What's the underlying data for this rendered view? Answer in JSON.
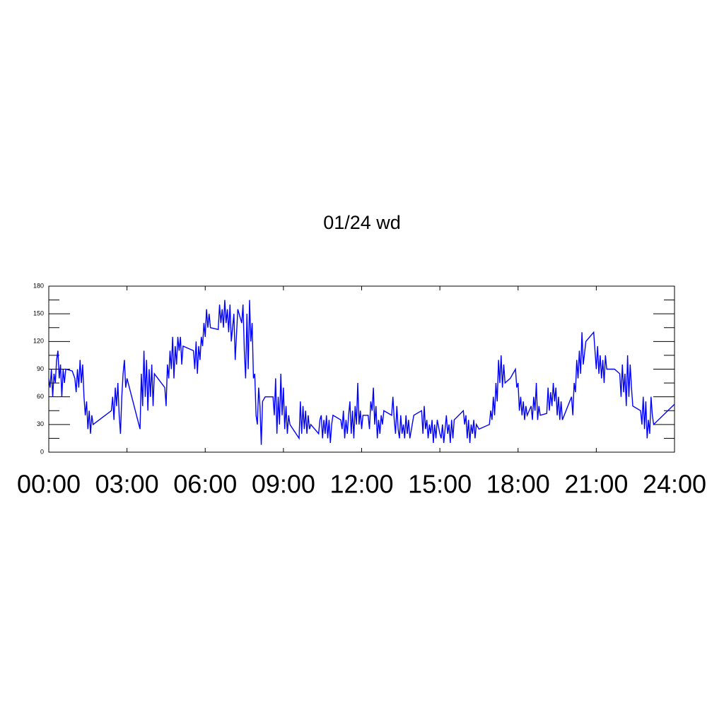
{
  "chart_data": {
    "type": "line",
    "title": "01/24 wd",
    "x": [
      0,
      0.05,
      0.1,
      0.15,
      0.2,
      0.25,
      0.3,
      0.35,
      0.4,
      0.45,
      0.5,
      0.55,
      0.6,
      0.65,
      0.9,
      1.0,
      1.05,
      1.1,
      1.15,
      1.2,
      1.25,
      1.3,
      1.35,
      1.4,
      1.45,
      1.5,
      1.55,
      1.6,
      1.65,
      1.7,
      2.4,
      2.45,
      2.5,
      2.55,
      2.6,
      2.65,
      2.7,
      2.75,
      2.8,
      2.85,
      2.9,
      2.95,
      3.0,
      3.5,
      3.55,
      3.6,
      3.65,
      3.7,
      3.75,
      3.8,
      3.85,
      3.9,
      3.95,
      4.0,
      4.05,
      4.45,
      4.5,
      4.55,
      4.6,
      4.65,
      4.7,
      4.75,
      4.8,
      4.85,
      4.9,
      4.95,
      5.0,
      5.05,
      5.1,
      5.15,
      5.55,
      5.6,
      5.65,
      5.7,
      5.75,
      5.8,
      5.85,
      5.9,
      5.95,
      6.0,
      6.05,
      6.1,
      6.15,
      6.2,
      6.5,
      6.55,
      6.6,
      6.65,
      6.7,
      6.75,
      6.8,
      6.85,
      6.9,
      6.95,
      7.0,
      7.05,
      7.1,
      7.15,
      7.25,
      7.4,
      7.45,
      7.5,
      7.55,
      7.6,
      7.65,
      7.7,
      7.75,
      7.8,
      7.85,
      7.9,
      7.95,
      8.0,
      8.05,
      8.1,
      8.15,
      8.2,
      8.3,
      8.6,
      8.65,
      8.7,
      8.75,
      8.8,
      8.85,
      8.9,
      8.95,
      9.0,
      9.05,
      9.1,
      9.15,
      9.2,
      9.25,
      9.6,
      9.65,
      9.7,
      9.75,
      9.8,
      9.85,
      9.9,
      9.95,
      10.0,
      10.05,
      10.35,
      10.4,
      10.45,
      10.5,
      10.55,
      10.6,
      10.65,
      10.7,
      10.75,
      10.8,
      10.85,
      10.9,
      11.2,
      11.25,
      11.3,
      11.35,
      11.4,
      11.45,
      11.5,
      11.55,
      11.6,
      11.65,
      11.7,
      11.75,
      11.8,
      11.85,
      11.9,
      11.95,
      12.0,
      12.05,
      12.25,
      12.3,
      12.35,
      12.4,
      12.45,
      12.5,
      12.55,
      12.6,
      12.65,
      12.7,
      12.75,
      12.8,
      12.85,
      13.15,
      13.2,
      13.25,
      13.3,
      13.35,
      13.4,
      13.45,
      13.5,
      13.55,
      13.6,
      13.65,
      13.7,
      13.75,
      13.8,
      13.85,
      14.0,
      14.3,
      14.35,
      14.4,
      14.45,
      14.5,
      14.55,
      14.6,
      14.65,
      14.7,
      14.75,
      14.8,
      14.85,
      14.9,
      15.0,
      15.05,
      15.1,
      15.15,
      15.2,
      15.25,
      15.3,
      15.35,
      15.4,
      15.45,
      15.5,
      15.55,
      15.9,
      15.95,
      16.0,
      16.05,
      16.1,
      16.15,
      16.2,
      16.25,
      16.3,
      16.35,
      16.4,
      16.5,
      16.9,
      16.95,
      17.0,
      17.05,
      17.1,
      17.15,
      17.2,
      17.25,
      17.3,
      17.35,
      17.4,
      17.45,
      17.5,
      17.7,
      17.9,
      17.95,
      18.0,
      18.05,
      18.1,
      18.15,
      18.2,
      18.25,
      18.3,
      18.35,
      18.5,
      18.55,
      18.6,
      18.65,
      18.7,
      18.75,
      18.8,
      18.85,
      19.1,
      19.15,
      19.2,
      19.25,
      19.3,
      19.35,
      19.4,
      19.45,
      19.5,
      19.55,
      19.6,
      19.65,
      19.7,
      20.05,
      20.1,
      20.15,
      20.2,
      20.25,
      20.3,
      20.35,
      20.4,
      20.45,
      20.5,
      20.6,
      20.9,
      20.95,
      21.0,
      21.05,
      21.1,
      21.15,
      21.2,
      21.25,
      21.3,
      21.35,
      21.4,
      21.7,
      21.9,
      21.95,
      22.0,
      22.05,
      22.1,
      22.15,
      22.2,
      22.25,
      22.3,
      22.35,
      22.4,
      22.7,
      22.75,
      22.8,
      22.85,
      22.9,
      22.95,
      23.0,
      23.05,
      23.1,
      23.15,
      23.2,
      24.0
    ],
    "series": [
      {
        "color": "#0000ff",
        "values": [
          80,
          70,
          90,
          60,
          85,
          75,
          100,
          110,
          80,
          95,
          60,
          90,
          75,
          90,
          88,
          80,
          65,
          90,
          70,
          100,
          75,
          95,
          60,
          40,
          55,
          25,
          45,
          20,
          40,
          30,
          45,
          60,
          35,
          70,
          50,
          75,
          40,
          20,
          60,
          85,
          100,
          70,
          80,
          25,
          85,
          50,
          110,
          60,
          100,
          45,
          90,
          60,
          95,
          50,
          85,
          70,
          50,
          95,
          80,
          110,
          90,
          125,
          80,
          115,
          95,
          125,
          110,
          125,
          95,
          115,
          110,
          90,
          120,
          85,
          115,
          100,
          125,
          115,
          140,
          125,
          155,
          135,
          150,
          135,
          133,
          160,
          140,
          155,
          135,
          165,
          140,
          155,
          130,
          160,
          120,
          135,
          150,
          100,
          155,
          140,
          160,
          110,
          80,
          150,
          90,
          165,
          120,
          140,
          80,
          85,
          40,
          30,
          70,
          50,
          8,
          55,
          60,
          60,
          40,
          80,
          20,
          60,
          30,
          85,
          40,
          70,
          25,
          50,
          20,
          40,
          30,
          15,
          55,
          20,
          50,
          25,
          45,
          20,
          40,
          25,
          30,
          20,
          35,
          40,
          15,
          35,
          20,
          40,
          15,
          35,
          10,
          30,
          40,
          35,
          25,
          45,
          15,
          35,
          20,
          40,
          55,
          20,
          45,
          15,
          50,
          30,
          75,
          30,
          45,
          25,
          40,
          40,
          25,
          55,
          45,
          70,
          30,
          50,
          15,
          35,
          20,
          40,
          30,
          45,
          40,
          60,
          35,
          20,
          50,
          25,
          15,
          40,
          20,
          30,
          15,
          40,
          20,
          35,
          15,
          40,
          45,
          20,
          50,
          25,
          35,
          15,
          30,
          20,
          35,
          10,
          30,
          15,
          35,
          20,
          15,
          30,
          10,
          25,
          40,
          20,
          30,
          10,
          35,
          15,
          35,
          45,
          30,
          40,
          15,
          35,
          10,
          30,
          20,
          35,
          15,
          30,
          25,
          30,
          45,
          35,
          60,
          40,
          75,
          55,
          100,
          75,
          105,
          70,
          95,
          75,
          80,
          90,
          70,
          75,
          45,
          60,
          40,
          55,
          35,
          50,
          40,
          50,
          35,
          60,
          45,
          75,
          35,
          50,
          40,
          42,
          70,
          45,
          65,
          50,
          75,
          55,
          70,
          40,
          60,
          35,
          55,
          35,
          60,
          40,
          75,
          65,
          100,
          80,
          110,
          85,
          130,
          95,
          120,
          130,
          110,
          90,
          115,
          85,
          105,
          80,
          100,
          75,
          105,
          90,
          90,
          85,
          60,
          95,
          65,
          85,
          50,
          105,
          60,
          95,
          70,
          50,
          45,
          30,
          60,
          25,
          55,
          15,
          35,
          20,
          60,
          40,
          30,
          52
        ]
      }
    ],
    "xlim": [
      0,
      24
    ],
    "xticks": [
      {
        "value": 0,
        "label": "00:00"
      },
      {
        "value": 3,
        "label": "03:00"
      },
      {
        "value": 6,
        "label": "06:00"
      },
      {
        "value": 9,
        "label": "09:00"
      },
      {
        "value": 12,
        "label": "12:00"
      },
      {
        "value": 15,
        "label": "15:00"
      },
      {
        "value": 18,
        "label": "18:00"
      },
      {
        "value": 21,
        "label": "21:00"
      },
      {
        "value": 24,
        "label": "24:00"
      }
    ],
    "ylim": [
      0,
      180
    ],
    "yticks": [
      0,
      30,
      60,
      90,
      120,
      150,
      180
    ],
    "grid": false
  }
}
